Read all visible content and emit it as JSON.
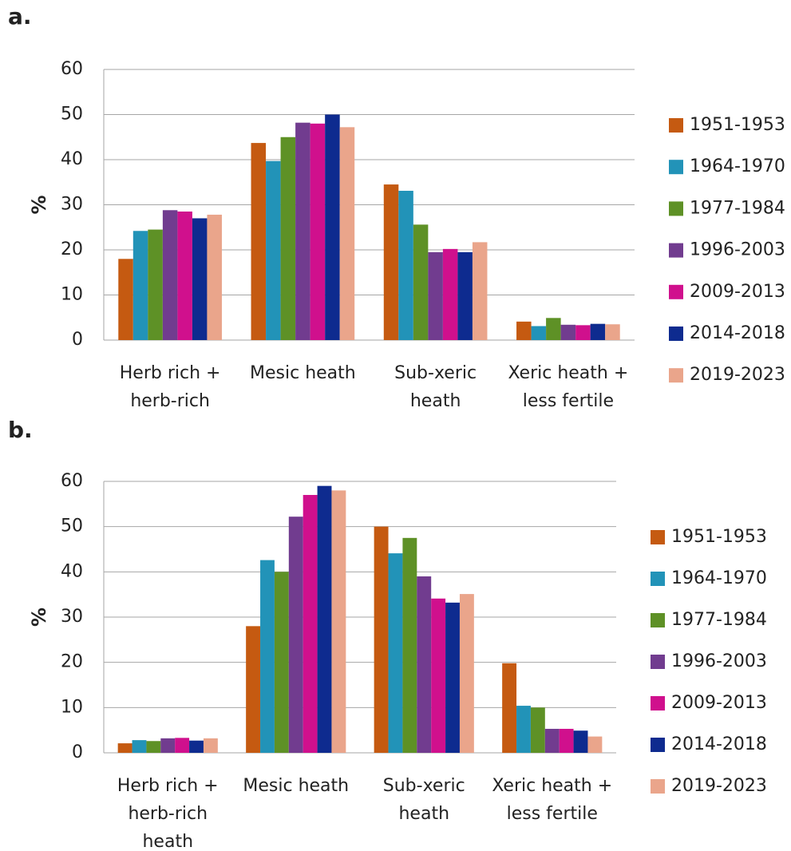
{
  "chart_data": [
    {
      "type": "bar",
      "title": "a.",
      "ylabel": "%",
      "categories": [
        "Herb rich + herb-rich",
        "Mesic heath",
        "Sub-xeric heath",
        "Xeric heath + less fertile"
      ],
      "ylim": [
        0,
        60
      ],
      "yticks": [
        0,
        10,
        20,
        30,
        40,
        50,
        60
      ],
      "grid": true,
      "legend": "right",
      "series": [
        {
          "name": "1951-1953",
          "color": "#c55a11",
          "values": [
            18,
            43.7,
            34.5,
            4.1
          ]
        },
        {
          "name": "1964-1970",
          "color": "#2293b8",
          "values": [
            24.2,
            39.7,
            33.1,
            3.1
          ]
        },
        {
          "name": "1977-1984",
          "color": "#5e9126",
          "values": [
            24.5,
            45,
            25.6,
            4.9
          ]
        },
        {
          "name": "1996-2003",
          "color": "#713c8f",
          "values": [
            28.8,
            48.2,
            19.5,
            3.4
          ]
        },
        {
          "name": "2009-2013",
          "color": "#d0108d",
          "values": [
            28.5,
            48,
            20.2,
            3.3
          ]
        },
        {
          "name": "2014-2018",
          "color": "#0e2b8f",
          "values": [
            27,
            50,
            19.5,
            3.6
          ]
        },
        {
          "name": "2019-2023",
          "color": "#eaa58b",
          "values": [
            27.8,
            47.2,
            21.7,
            3.5
          ]
        }
      ]
    },
    {
      "type": "bar",
      "title": "b.",
      "ylabel": "%",
      "categories": [
        "Herb rich + herb-rich heath",
        "Mesic heath",
        "Sub-xeric heath",
        "Xeric heath + less fertile"
      ],
      "ylim": [
        0,
        60
      ],
      "yticks": [
        0,
        10,
        20,
        30,
        40,
        50,
        60
      ],
      "grid": true,
      "legend": "right",
      "series": [
        {
          "name": "1951-1953",
          "color": "#c55a11",
          "values": [
            2.1,
            28,
            50,
            19.8
          ]
        },
        {
          "name": "1964-1970",
          "color": "#2293b8",
          "values": [
            2.8,
            42.6,
            44.1,
            10.4
          ]
        },
        {
          "name": "1977-1984",
          "color": "#5e9126",
          "values": [
            2.6,
            40,
            47.5,
            10
          ]
        },
        {
          "name": "1996-2003",
          "color": "#713c8f",
          "values": [
            3.2,
            52.2,
            39,
            5.3
          ]
        },
        {
          "name": "2009-2013",
          "color": "#d0108d",
          "values": [
            3.3,
            57,
            34.1,
            5.3
          ]
        },
        {
          "name": "2014-2018",
          "color": "#0e2b8f",
          "values": [
            2.7,
            59,
            33.2,
            4.9
          ]
        },
        {
          "name": "2019-2023",
          "color": "#eaa58b",
          "values": [
            3.2,
            58,
            35.1,
            3.6
          ]
        }
      ]
    }
  ]
}
